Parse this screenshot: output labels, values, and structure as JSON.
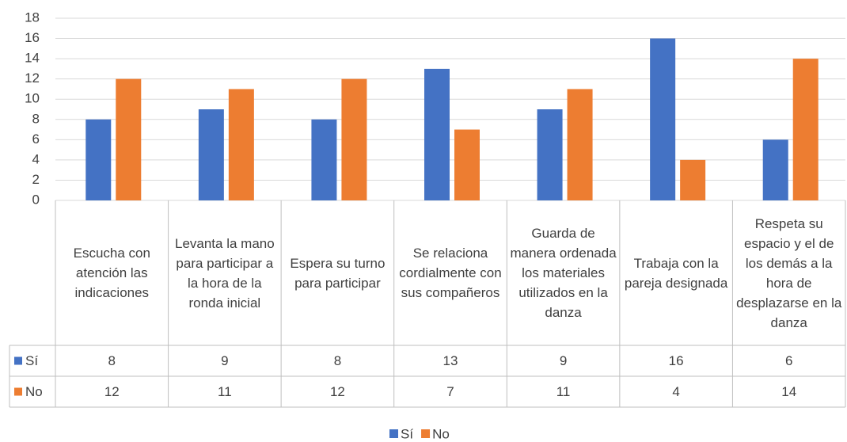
{
  "chart_data": {
    "type": "bar",
    "categories": [
      "Escucha con atención las indicaciones",
      "Levanta la mano para participar a la hora de la ronda inicial",
      "Espera su turno para participar",
      "Se relaciona cordialmente con sus compañeros",
      "Guarda de manera ordenada los materiales utilizados en la danza",
      "Trabaja con la pareja designada",
      "Respeta su espacio y el de los demás a la hora de desplazarse en la danza"
    ],
    "series": [
      {
        "name": "Sí",
        "color": "#4472c4",
        "values": [
          8,
          9,
          8,
          13,
          9,
          16,
          6
        ]
      },
      {
        "name": "No",
        "color": "#ed7d31",
        "values": [
          12,
          11,
          12,
          7,
          11,
          4,
          14
        ]
      }
    ],
    "ylim": [
      0,
      18
    ],
    "yticks": [
      0,
      2,
      4,
      6,
      8,
      10,
      12,
      14,
      16,
      18
    ],
    "grid": true,
    "legend": "bottom"
  }
}
